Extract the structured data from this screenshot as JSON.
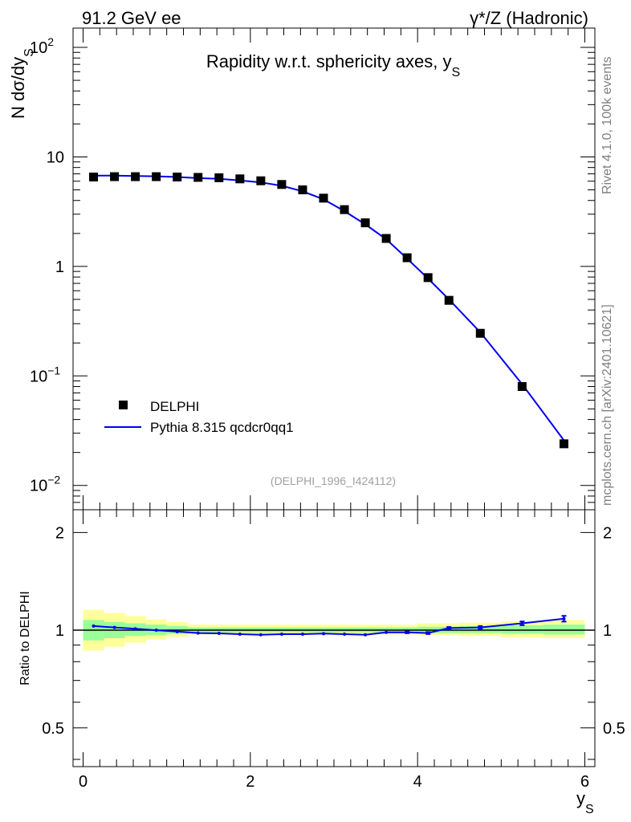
{
  "header": {
    "left": "91.2 GeV ee",
    "right": "γ*/Z (Hadronic)"
  },
  "side_text": {
    "rivet": "Rivet 4.1.0,  100k events",
    "mcplots": "mcplots.cern.ch [arXiv:2401.10621]"
  },
  "chart_data": [
    {
      "type": "line",
      "panel": "main",
      "title": "Rapidity w.r.t. sphericity axes, y",
      "title_sub": "S",
      "ylabel": "N  dσ/dy",
      "ylabel_sub": "S",
      "yscale": "log",
      "ylim": [
        0.006,
        150
      ],
      "xlim": [
        -0.12,
        6.12
      ],
      "y_ticks": [
        {
          "value": 100,
          "label": "10",
          "sup": "2"
        },
        {
          "value": 10,
          "label": "10",
          "sup": ""
        },
        {
          "value": 1,
          "label": "1",
          "sup": ""
        },
        {
          "value": 0.1,
          "label": "10",
          "sup": "−1"
        },
        {
          "value": 0.01,
          "label": "10",
          "sup": "−2"
        }
      ],
      "watermark": "(DELPHI_1996_I424112)",
      "legend": {
        "placement": "bottom-left"
      },
      "series": [
        {
          "name": "DELPHI",
          "style": "markers",
          "color": "#000000",
          "x": [
            0.125,
            0.375,
            0.625,
            0.875,
            1.125,
            1.375,
            1.625,
            1.875,
            2.125,
            2.375,
            2.625,
            2.875,
            3.125,
            3.375,
            3.625,
            3.875,
            4.125,
            4.375,
            4.75,
            5.25,
            5.75
          ],
          "y": [
            6.55,
            6.6,
            6.6,
            6.6,
            6.55,
            6.5,
            6.45,
            6.3,
            6.05,
            5.6,
            5.0,
            4.2,
            3.3,
            2.5,
            1.8,
            1.2,
            0.79,
            0.49,
            0.245,
            0.08,
            0.024
          ]
        },
        {
          "name": "Pythia 8.315 qcdcr0qq1",
          "style": "line",
          "color": "#0000ee",
          "x": [
            0.125,
            0.375,
            0.625,
            0.875,
            1.125,
            1.375,
            1.625,
            1.875,
            2.125,
            2.375,
            2.625,
            2.875,
            3.125,
            3.375,
            3.625,
            3.875,
            4.125,
            4.375,
            4.75,
            5.25,
            5.75
          ],
          "y": [
            6.75,
            6.75,
            6.7,
            6.65,
            6.55,
            6.4,
            6.3,
            6.1,
            5.85,
            5.45,
            4.85,
            4.1,
            3.2,
            2.42,
            1.77,
            1.18,
            0.775,
            0.5,
            0.25,
            0.084,
            0.0258
          ]
        }
      ]
    },
    {
      "type": "line",
      "panel": "ratio",
      "ylabel": "Ratio to DELPHI",
      "ylim": [
        0.38,
        2.35
      ],
      "xlim": [
        -0.12,
        6.12
      ],
      "y_ticks": [
        0.5,
        1,
        2
      ],
      "y_tick_labels": [
        "0.5",
        "1",
        "2"
      ],
      "x_ticks": [
        0,
        2,
        4,
        6
      ],
      "x_tick_labels": [
        "0",
        "2",
        "4",
        "6"
      ],
      "xlabel": "y",
      "xlabel_sub": "S",
      "bands": [
        {
          "x_lo": 0.0,
          "x_hi": 0.25,
          "yellow": [
            0.865,
            1.155
          ],
          "green": [
            0.93,
            1.075
          ]
        },
        {
          "x_lo": 0.25,
          "x_hi": 0.5,
          "yellow": [
            0.89,
            1.13
          ],
          "green": [
            0.945,
            1.06
          ]
        },
        {
          "x_lo": 0.5,
          "x_hi": 0.75,
          "yellow": [
            0.915,
            1.105
          ],
          "green": [
            0.96,
            1.05
          ]
        },
        {
          "x_lo": 0.75,
          "x_hi": 1.0,
          "yellow": [
            0.935,
            1.08
          ],
          "green": [
            0.965,
            1.04
          ]
        },
        {
          "x_lo": 1.0,
          "x_hi": 1.25,
          "yellow": [
            0.955,
            1.06
          ],
          "green": [
            0.975,
            1.03
          ]
        },
        {
          "x_lo": 1.25,
          "x_hi": 4.0,
          "yellow": [
            0.97,
            1.04
          ],
          "green": [
            0.985,
            1.02
          ]
        },
        {
          "x_lo": 4.0,
          "x_hi": 4.5,
          "yellow": [
            0.965,
            1.05
          ],
          "green": [
            0.98,
            1.025
          ]
        },
        {
          "x_lo": 4.5,
          "x_hi": 5.0,
          "yellow": [
            0.96,
            1.055
          ],
          "green": [
            0.98,
            1.03
          ]
        },
        {
          "x_lo": 5.0,
          "x_hi": 5.5,
          "yellow": [
            0.95,
            1.065
          ],
          "green": [
            0.975,
            1.035
          ]
        },
        {
          "x_lo": 5.5,
          "x_hi": 6.0,
          "yellow": [
            0.945,
            1.075
          ],
          "green": [
            0.97,
            1.04
          ]
        }
      ],
      "series": [
        {
          "name": "Pythia 8.315 qcdcr0qq1",
          "color": "#0000ee",
          "x": [
            0.125,
            0.375,
            0.625,
            0.875,
            1.125,
            1.375,
            1.625,
            1.875,
            2.125,
            2.375,
            2.625,
            2.875,
            3.125,
            3.375,
            3.625,
            3.875,
            4.125,
            4.375,
            4.75,
            5.25,
            5.75
          ],
          "y": [
            1.03,
            1.02,
            1.01,
            1.0,
            0.99,
            0.98,
            0.978,
            0.972,
            0.968,
            0.972,
            0.972,
            0.976,
            0.972,
            0.968,
            0.985,
            0.985,
            0.98,
            1.015,
            1.02,
            1.05,
            1.085
          ],
          "err": [
            0.004,
            0.004,
            0.004,
            0.004,
            0.004,
            0.004,
            0.004,
            0.004,
            0.004,
            0.004,
            0.004,
            0.004,
            0.004,
            0.004,
            0.005,
            0.006,
            0.007,
            0.008,
            0.01,
            0.014,
            0.022
          ]
        }
      ]
    }
  ]
}
